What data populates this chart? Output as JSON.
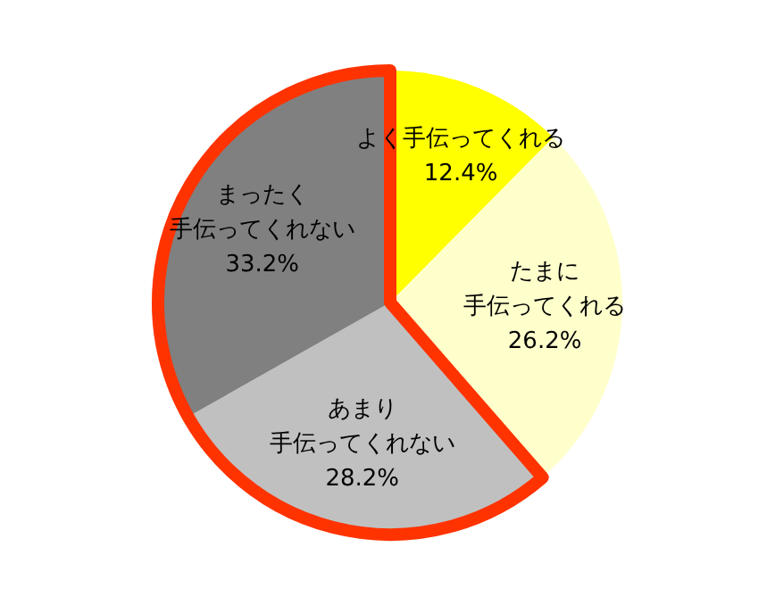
{
  "chart_data": {
    "type": "pie",
    "categories": [
      "よく手伝ってくれる",
      "たまに手伝ってくれる",
      "あまり手伝ってくれない",
      "まったく手伝ってくれない"
    ],
    "values": [
      12.4,
      26.2,
      28.2,
      33.2
    ],
    "value_labels": [
      "12.4%",
      "26.2%",
      "28.2%",
      "33.2%"
    ],
    "colors": [
      "#ffff00",
      "#ffffcc",
      "#c0c0c0",
      "#808080"
    ]
  }
}
